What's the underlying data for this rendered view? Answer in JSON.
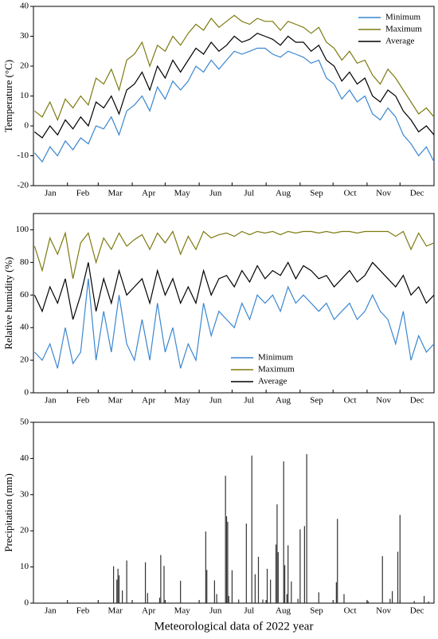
{
  "chart_data": [
    {
      "type": "line",
      "ylabel": "Temperature (°C)",
      "xlim": [
        0,
        365
      ],
      "xticks": [
        0,
        31,
        59,
        90,
        120,
        151,
        181,
        212,
        243,
        273,
        304,
        334,
        365
      ],
      "categories": [
        "Jan",
        "Feb",
        "Mar",
        "Apr",
        "May",
        "Jun",
        "Jul",
        "Aug",
        "Sep",
        "Oct",
        "Nov",
        "Dec"
      ],
      "ylim": [
        -20,
        40
      ],
      "yticks": [
        -20,
        -10,
        0,
        10,
        20,
        30,
        40
      ],
      "legend": "upper right",
      "x": [
        1,
        8,
        15,
        22,
        29,
        36,
        43,
        50,
        57,
        64,
        71,
        78,
        85,
        92,
        99,
        106,
        113,
        120,
        127,
        134,
        141,
        148,
        155,
        162,
        169,
        176,
        183,
        190,
        197,
        204,
        211,
        218,
        225,
        232,
        239,
        246,
        253,
        260,
        267,
        274,
        281,
        288,
        295,
        302,
        309,
        316,
        323,
        330,
        337,
        344,
        351,
        358,
        365
      ],
      "series": [
        {
          "name": "Minimum",
          "color": "#3a86d0",
          "values": [
            -9,
            -12,
            -7,
            -10,
            -5,
            -8,
            -4,
            -6,
            0,
            -1,
            3,
            -3,
            5,
            7,
            10,
            5,
            13,
            9,
            15,
            12,
            15,
            20,
            18,
            22,
            19,
            22,
            25,
            24,
            25,
            26,
            26,
            24,
            23,
            25,
            24,
            23,
            21,
            22,
            16,
            14,
            9,
            12,
            8,
            10,
            4,
            2,
            6,
            3,
            -3,
            -6,
            -10,
            -7,
            -12
          ]
        },
        {
          "name": "Maximum",
          "color": "#7d7a10",
          "values": [
            5,
            3,
            8,
            2,
            9,
            6,
            10,
            7,
            16,
            14,
            19,
            12,
            22,
            24,
            28,
            20,
            27,
            25,
            30,
            27,
            31,
            34,
            32,
            36,
            33,
            35,
            37,
            35,
            34,
            36,
            35,
            35,
            32,
            35,
            34,
            33,
            31,
            33,
            28,
            26,
            22,
            25,
            21,
            22,
            17,
            14,
            19,
            16,
            12,
            8,
            4,
            6,
            3
          ]
        },
        {
          "name": "Average",
          "color": "#000000",
          "values": [
            -2,
            -4,
            0,
            -3,
            2,
            -1,
            3,
            0,
            8,
            6,
            10,
            4,
            12,
            14,
            18,
            12,
            20,
            16,
            22,
            18,
            22,
            26,
            24,
            28,
            25,
            27,
            30,
            28,
            29,
            31,
            30,
            29,
            27,
            30,
            28,
            28,
            25,
            27,
            22,
            20,
            15,
            18,
            14,
            16,
            10,
            8,
            12,
            10,
            5,
            2,
            -2,
            0,
            -3
          ]
        }
      ]
    },
    {
      "type": "line",
      "ylabel": "Relative humidity (%)",
      "xlim": [
        0,
        365
      ],
      "xticks": [
        0,
        31,
        59,
        90,
        120,
        151,
        181,
        212,
        243,
        273,
        304,
        334,
        365
      ],
      "categories": [
        "Jan",
        "Feb",
        "Mar",
        "Apr",
        "May",
        "Jun",
        "Jul",
        "Aug",
        "Sep",
        "Oct",
        "Nov",
        "Dec"
      ],
      "ylim": [
        0,
        110
      ],
      "yticks": [
        0,
        20,
        40,
        60,
        80,
        100
      ],
      "legend": "lower center",
      "x": [
        1,
        8,
        15,
        22,
        29,
        36,
        43,
        50,
        57,
        64,
        71,
        78,
        85,
        92,
        99,
        106,
        113,
        120,
        127,
        134,
        141,
        148,
        155,
        162,
        169,
        176,
        183,
        190,
        197,
        204,
        211,
        218,
        225,
        232,
        239,
        246,
        253,
        260,
        267,
        274,
        281,
        288,
        295,
        302,
        309,
        316,
        323,
        330,
        337,
        344,
        351,
        358,
        365
      ],
      "series": [
        {
          "name": "Minimum",
          "color": "#3a86d0",
          "values": [
            25,
            20,
            30,
            15,
            40,
            18,
            25,
            70,
            20,
            50,
            25,
            60,
            30,
            20,
            45,
            20,
            55,
            25,
            40,
            15,
            30,
            20,
            55,
            35,
            50,
            45,
            40,
            55,
            45,
            60,
            55,
            60,
            50,
            65,
            55,
            60,
            55,
            50,
            55,
            45,
            50,
            55,
            45,
            50,
            60,
            50,
            45,
            30,
            50,
            20,
            35,
            25,
            30
          ]
        },
        {
          "name": "Maximum",
          "color": "#7d7a10",
          "values": [
            90,
            75,
            95,
            85,
            98,
            70,
            92,
            98,
            80,
            95,
            88,
            98,
            90,
            94,
            97,
            88,
            98,
            92,
            99,
            85,
            96,
            88,
            99,
            95,
            97,
            98,
            96,
            99,
            97,
            99,
            98,
            99,
            97,
            99,
            98,
            99,
            99,
            98,
            99,
            98,
            99,
            99,
            98,
            99,
            99,
            99,
            99,
            96,
            99,
            88,
            98,
            90,
            92
          ]
        },
        {
          "name": "Average",
          "color": "#000000",
          "values": [
            60,
            50,
            65,
            55,
            70,
            45,
            60,
            80,
            50,
            70,
            55,
            75,
            60,
            65,
            70,
            55,
            75,
            60,
            70,
            55,
            65,
            55,
            75,
            60,
            70,
            72,
            65,
            75,
            68,
            78,
            70,
            75,
            72,
            80,
            70,
            78,
            75,
            70,
            72,
            65,
            70,
            75,
            68,
            72,
            80,
            75,
            70,
            65,
            72,
            60,
            65,
            55,
            60
          ]
        }
      ]
    },
    {
      "type": "bar",
      "ylabel": "Precipitation (mm)",
      "xlabel": "Meteorological data of 2022 year",
      "xlim": [
        0,
        365
      ],
      "xticks": [
        0,
        31,
        59,
        90,
        120,
        151,
        181,
        212,
        243,
        273,
        304,
        334,
        365
      ],
      "categories": [
        "Jan",
        "Feb",
        "Mar",
        "Apr",
        "May",
        "Jun",
        "Jul",
        "Aug",
        "Sep",
        "Oct",
        "Nov",
        "Dec"
      ],
      "ylim": [
        0,
        50
      ],
      "yticks": [
        0,
        10,
        20,
        30,
        40,
        50
      ],
      "color": "#333333",
      "x": [
        73,
        76,
        77,
        78,
        81,
        85,
        102,
        104,
        115,
        116,
        119,
        134,
        157,
        158,
        165,
        167,
        175,
        176,
        177,
        178,
        181,
        187,
        194,
        199,
        202,
        205,
        209,
        213,
        216,
        221,
        222,
        223,
        228,
        229,
        231,
        232,
        235,
        241,
        243,
        247,
        249,
        260,
        276,
        277,
        283,
        305,
        318,
        325,
        327,
        332,
        334,
        347,
        356,
        360
      ],
      "values": [
        10.2,
        6.5,
        9.5,
        7.7,
        3.5,
        11.8,
        11.3,
        2.8,
        1.5,
        13.3,
        10.3,
        6.2,
        19.8,
        9.2,
        6.3,
        2.5,
        35.2,
        24,
        22.5,
        2,
        9.1,
        1,
        22,
        40.8,
        8,
        12.8,
        1,
        9.5,
        6.5,
        16.2,
        27.3,
        14.1,
        39.2,
        10.5,
        2.5,
        16,
        6,
        1.2,
        20.4,
        21.3,
        41.2,
        3,
        5.8,
        23.3,
        2.5,
        0.5,
        13,
        1.2,
        3.3,
        14.2,
        24.4,
        0.6,
        2,
        0.5
      ]
    }
  ]
}
